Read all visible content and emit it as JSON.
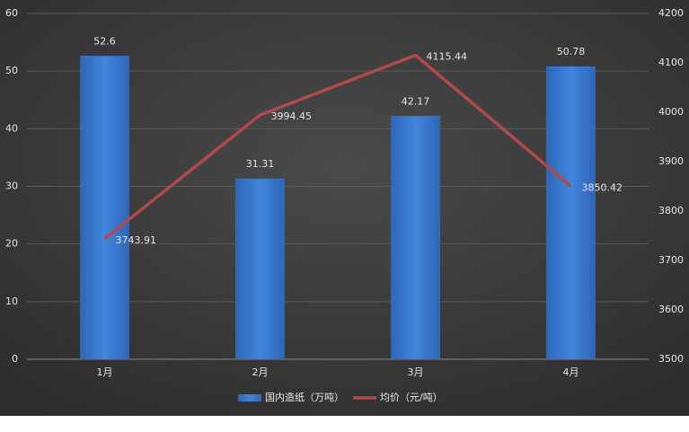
{
  "chart_data": {
    "type": "bar-line",
    "categories": [
      "1月",
      "2月",
      "3月",
      "4月"
    ],
    "series": [
      {
        "name": "国内造纸（万吨）",
        "type": "bar",
        "color": "#3a78d0",
        "values": [
          52.6,
          31.31,
          42.17,
          50.78
        ]
      },
      {
        "name": "均价（元/吨）",
        "type": "line",
        "axis": "y2",
        "color": "#b04a4a",
        "values": [
          3743.91,
          3994.45,
          4115.44,
          3850.42
        ]
      }
    ],
    "ylim": [
      0,
      60
    ],
    "yticks": [
      0,
      10,
      20,
      30,
      40,
      50,
      60
    ],
    "y2lim": [
      3500,
      4200
    ],
    "y2ticks": [
      3500,
      3600,
      3700,
      3800,
      3900,
      4000,
      4100,
      4200
    ],
    "grid": true,
    "legend": "bottom"
  }
}
